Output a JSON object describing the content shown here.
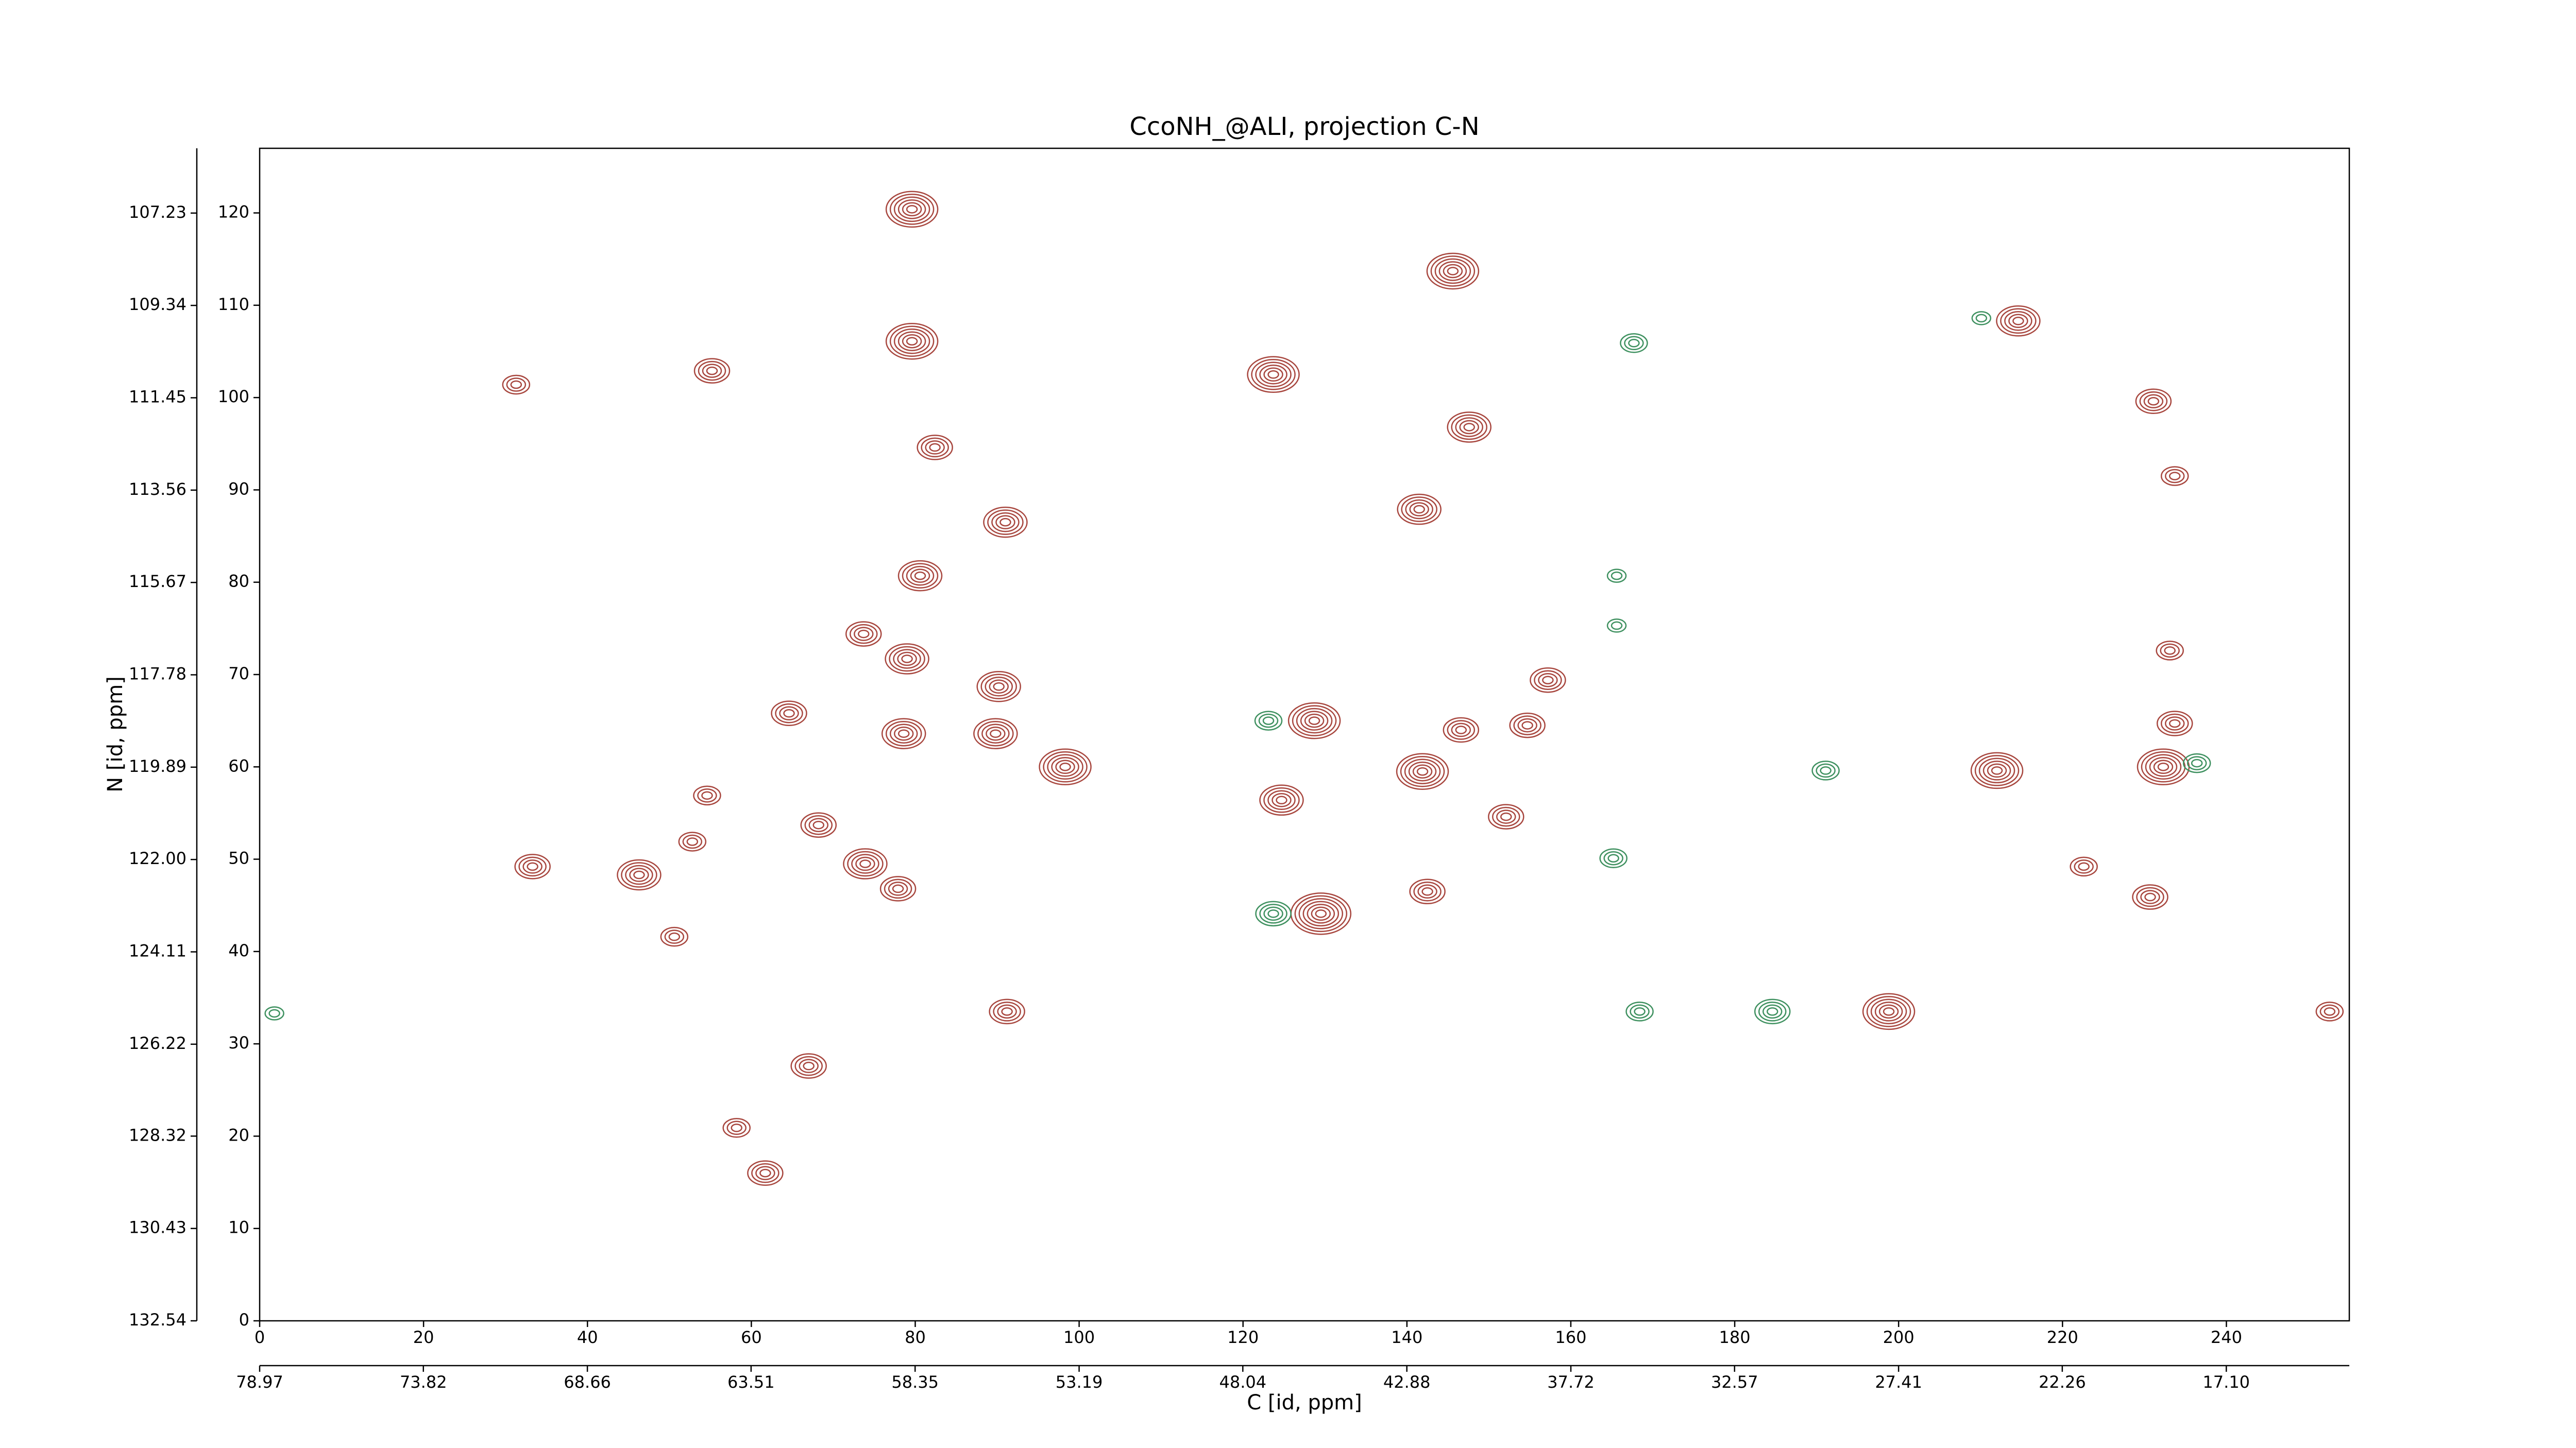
{
  "chart_data": {
    "type": "contour",
    "title": "CcoNH_@ALI, projection C-N",
    "x_label": "C [id, ppm]",
    "y_label": "N [id, ppm]",
    "xlim": [
      0,
      255
    ],
    "xticks": [
      0,
      20,
      40,
      60,
      80,
      100,
      120,
      140,
      160,
      180,
      200,
      220,
      240
    ],
    "ylim": [
      0,
      127
    ],
    "yticks": [
      0,
      10,
      20,
      30,
      40,
      50,
      60,
      70,
      80,
      90,
      100,
      110,
      120
    ],
    "x2lim": [
      78.97,
      13.23
    ],
    "x2ticks": [
      78.97,
      73.82,
      68.66,
      63.51,
      58.35,
      53.19,
      48.04,
      42.88,
      37.72,
      32.57,
      27.41,
      22.26,
      {
        "value": 17.1,
        "label": "17.10"
      }
    ],
    "y2lim": [
      132.54,
      105.75
    ],
    "y2ticks": [
      132.54,
      130.43,
      128.32,
      126.22,
      124.11,
      {
        "value": 122,
        "label": "122.00"
      },
      119.89,
      117.78,
      115.67,
      113.56,
      111.45,
      109.34,
      107.23
    ],
    "series": [
      {
        "color": "#a8473f",
        "x": [
          79.6,
          145.6,
          79.6,
          55.2,
          123.7,
          214.6,
          231.1,
          82.4,
          147.6,
          141.5,
          91.0,
          80.6,
          73.7,
          128.7,
          64.6,
          90.2,
          79.0,
          78.6,
          89.8,
          98.3,
          141.9,
          146.6,
          154.7,
          157.2,
          124.7,
          152.1,
          212.0,
          232.3,
          233.7,
          230.7,
          129.5,
          142.5,
          46.3,
          50.6,
          52.8,
          54.6,
          68.2,
          73.9,
          77.9,
          198.8,
          91.2,
          61.7,
          58.2,
          67.0,
          252.6,
          31.3,
          233.7,
          233.1,
          222.6,
          33.3
        ],
        "y": [
          120.4,
          113.7,
          106.1,
          102.9,
          102.5,
          108.3,
          99.6,
          94.6,
          96.8,
          87.9,
          86.5,
          80.7,
          74.4,
          65.0,
          65.8,
          68.7,
          71.7,
          63.6,
          63.6,
          60.0,
          59.5,
          64.0,
          64.5,
          69.4,
          56.4,
          54.6,
          59.6,
          60.0,
          64.7,
          45.9,
          44.1,
          46.5,
          48.3,
          41.6,
          51.9,
          56.9,
          53.7,
          49.5,
          46.8,
          33.5,
          33.5,
          16.0,
          20.9,
          27.6,
          33.5,
          101.4,
          91.5,
          72.6,
          49.2,
          49.2
        ],
        "levels": [
          6,
          6,
          6,
          4,
          6,
          5,
          4,
          4,
          5,
          5,
          5,
          5,
          4,
          6,
          4,
          5,
          5,
          5,
          5,
          6,
          6,
          4,
          4,
          4,
          5,
          4,
          6,
          6,
          4,
          4,
          7,
          4,
          5,
          3,
          3,
          3,
          4,
          5,
          4,
          6,
          4,
          4,
          3,
          4,
          3,
          3,
          3,
          3,
          3,
          4
        ]
      },
      {
        "color": "#3f9160",
        "x": [
          123.7,
          184.6,
          168.4,
          123.1,
          167.7,
          210.1,
          236.4,
          191.1,
          165.2,
          1.8,
          165.6,
          165.6
        ],
        "y": [
          44.1,
          33.5,
          33.5,
          65.0,
          105.9,
          108.6,
          60.4,
          59.6,
          50.1,
          33.3,
          75.3,
          80.7
        ],
        "levels": [
          4,
          4,
          3,
          3,
          3,
          2,
          3,
          3,
          3,
          2,
          2,
          2
        ]
      }
    ]
  }
}
